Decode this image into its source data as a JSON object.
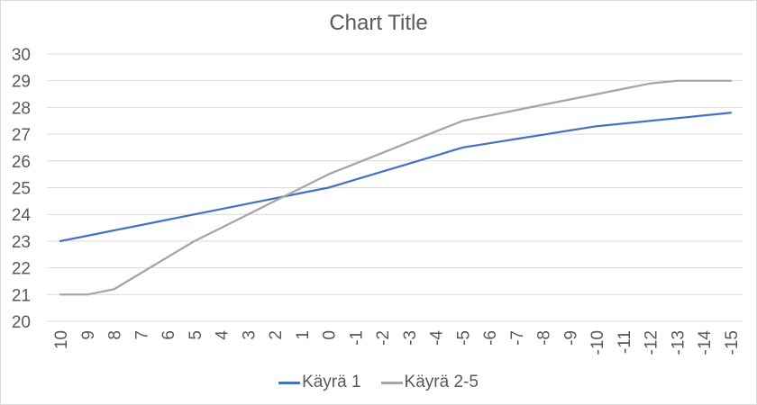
{
  "chart_data": {
    "type": "line",
    "title": "Chart Title",
    "xlabel": "",
    "ylabel": "",
    "ylim": [
      20,
      30
    ],
    "yticks": [
      20,
      21,
      22,
      23,
      24,
      25,
      26,
      27,
      28,
      29,
      30
    ],
    "grid": true,
    "legend_position": "bottom",
    "categories": [
      "10",
      "9",
      "8",
      "7",
      "6",
      "5",
      "4",
      "3",
      "2",
      "1",
      "0",
      "-1",
      "-2",
      "-3",
      "-4",
      "-5",
      "-6",
      "-7",
      "-8",
      "-9",
      "-10",
      "-11",
      "-12",
      "-13",
      "-14",
      "-15"
    ],
    "series": [
      {
        "name": "Käyrä 1",
        "color": "#4472c4",
        "values": [
          23.0,
          23.2,
          23.4,
          23.6,
          23.8,
          24.0,
          24.2,
          24.4,
          24.6,
          24.8,
          25.0,
          25.3,
          25.6,
          25.9,
          26.2,
          26.5,
          26.66,
          26.82,
          26.98,
          27.14,
          27.3,
          27.4,
          27.5,
          27.6,
          27.7,
          27.8
        ]
      },
      {
        "name": "Käyrä 2-5",
        "color": "#a5a5a5",
        "values": [
          21.0,
          21.0,
          21.2,
          21.8,
          22.4,
          23.0,
          23.5,
          24.0,
          24.5,
          25.0,
          25.5,
          25.9,
          26.3,
          26.7,
          27.1,
          27.5,
          27.7,
          27.9,
          28.1,
          28.3,
          28.5,
          28.7,
          28.9,
          29.0,
          29.0,
          29.0
        ]
      }
    ]
  },
  "legend": {
    "items": [
      {
        "label": "Käyrä 1",
        "color": "#4472c4"
      },
      {
        "label": "Käyrä 2-5",
        "color": "#a5a5a5"
      }
    ]
  },
  "colors": {
    "gridline": "#d9d9d9",
    "text": "#595959",
    "border": "#d9d9d9"
  }
}
